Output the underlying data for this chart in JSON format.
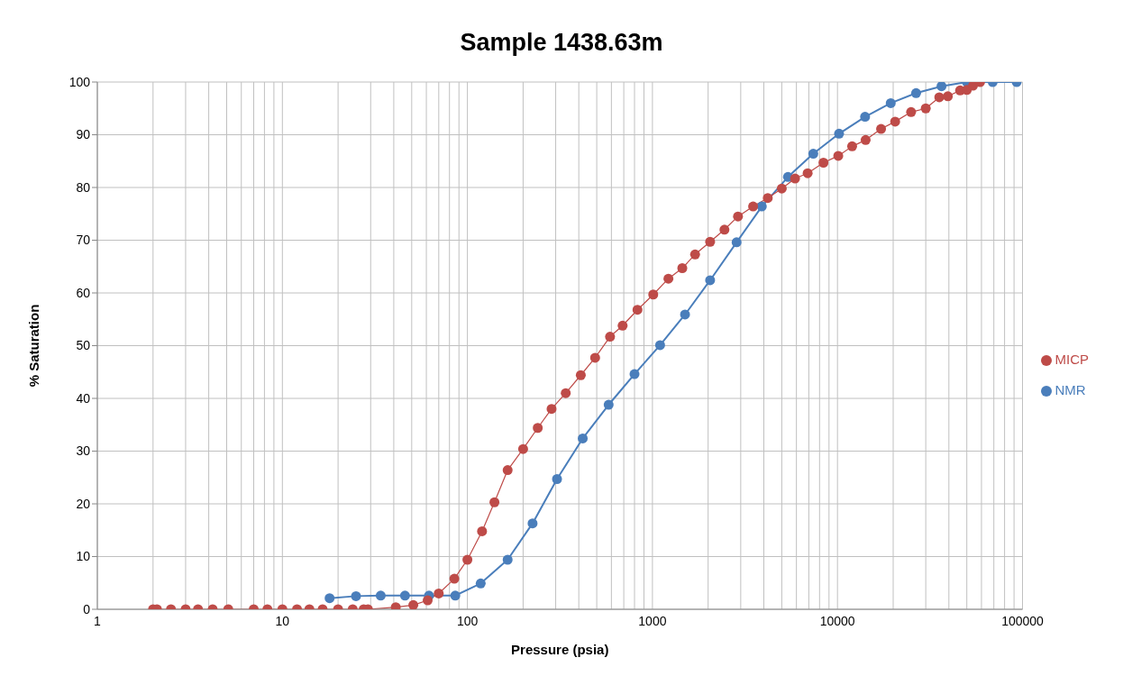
{
  "chart_data": {
    "type": "line",
    "title": "Sample 1438.63m",
    "xlabel": "Pressure (psia)",
    "ylabel": "% Saturation",
    "log": "x",
    "grid": true,
    "legend": "right",
    "marker": "circle",
    "line_style": "solid",
    "xlim": [
      1,
      100000
    ],
    "xticks": [
      1,
      {
        "value": 2,
        "label": null
      },
      {
        "value": 3,
        "label": null
      },
      {
        "value": 4,
        "label": null
      },
      {
        "value": 5,
        "label": null
      },
      {
        "value": 6,
        "label": null
      },
      {
        "value": 7,
        "label": null
      },
      {
        "value": 8,
        "label": null
      },
      {
        "value": 9,
        "label": null
      },
      10,
      {
        "value": 20,
        "label": null
      },
      {
        "value": 30,
        "label": null
      },
      {
        "value": 40,
        "label": null
      },
      {
        "value": 50,
        "label": null
      },
      {
        "value": 60,
        "label": null
      },
      {
        "value": 70,
        "label": null
      },
      {
        "value": 80,
        "label": null
      },
      {
        "value": 90,
        "label": null
      },
      100,
      {
        "value": 200,
        "label": null
      },
      {
        "value": 300,
        "label": null
      },
      {
        "value": 400,
        "label": null
      },
      {
        "value": 500,
        "label": null
      },
      {
        "value": 600,
        "label": null
      },
      {
        "value": 700,
        "label": null
      },
      {
        "value": 800,
        "label": null
      },
      {
        "value": 900,
        "label": null
      },
      1000,
      {
        "value": 2000,
        "label": null
      },
      {
        "value": 3000,
        "label": null
      },
      {
        "value": 4000,
        "label": null
      },
      {
        "value": 5000,
        "label": null
      },
      {
        "value": 6000,
        "label": null
      },
      {
        "value": 7000,
        "label": null
      },
      {
        "value": 8000,
        "label": null
      },
      {
        "value": 9000,
        "label": null
      },
      10000,
      {
        "value": 20000,
        "label": null
      },
      {
        "value": 30000,
        "label": null
      },
      {
        "value": 40000,
        "label": null
      },
      {
        "value": 50000,
        "label": null
      },
      {
        "value": 60000,
        "label": null
      },
      {
        "value": 70000,
        "label": null
      },
      {
        "value": 80000,
        "label": null
      },
      {
        "value": 90000,
        "label": null
      },
      100000
    ],
    "ylim": [
      0,
      100
    ],
    "yticks": [
      0,
      10,
      20,
      30,
      40,
      50,
      60,
      70,
      80,
      90,
      100
    ],
    "series": [
      {
        "name": "NMR",
        "color": "#4a7ebb",
        "x": [
          18,
          25,
          34,
          46,
          62,
          86,
          118,
          165,
          225,
          305,
          420,
          580,
          800,
          1100,
          1500,
          2050,
          2850,
          3900,
          5400,
          7400,
          10200,
          14100,
          19400,
          26600,
          36500,
          50000,
          69000,
          93000
        ],
        "values": [
          2.1,
          2.5,
          2.6,
          2.6,
          2.6,
          2.6,
          4.9,
          9.4,
          16.3,
          24.7,
          32.4,
          38.8,
          44.6,
          50.1,
          55.9,
          62.4,
          69.6,
          76.4,
          82,
          86.4,
          90.2,
          93.4,
          96,
          97.9,
          99.2,
          100,
          100,
          100
        ]
      },
      {
        "name": "MICP",
        "color": "#be4b48",
        "x": [
          2.0,
          2.1,
          2.5,
          3.0,
          3.5,
          4.2,
          5.1,
          7,
          8.3,
          10,
          12,
          14,
          16.5,
          20,
          24,
          27.5,
          29,
          41,
          51,
          61,
          70,
          85,
          100,
          120,
          140,
          165,
          200,
          240,
          285,
          340,
          410,
          490,
          590,
          690,
          830,
          1010,
          1220,
          1450,
          1700,
          2050,
          2450,
          2900,
          3500,
          4200,
          5000,
          5900,
          6900,
          8400,
          10100,
          12000,
          14200,
          17200,
          20500,
          25000,
          30000,
          35500,
          39500,
          46000,
          50000,
          54000,
          59000
        ],
        "values": [
          0,
          0,
          0,
          0,
          0,
          0,
          0,
          0,
          0,
          0,
          0,
          0,
          0,
          0,
          0,
          0,
          0,
          0.4,
          0.8,
          1.7,
          3.0,
          5.8,
          9.4,
          14.8,
          20.3,
          26.4,
          30.4,
          34.4,
          38,
          41,
          44.4,
          47.7,
          51.7,
          53.8,
          56.8,
          59.7,
          62.7,
          64.7,
          67.3,
          69.7,
          72,
          74.5,
          76.4,
          78,
          79.8,
          81.7,
          82.7,
          84.7,
          86,
          87.8,
          89,
          91.1,
          92.5,
          94.3,
          95,
          97.1,
          97.3,
          98.4,
          98.5,
          99.3,
          100
        ]
      }
    ]
  }
}
